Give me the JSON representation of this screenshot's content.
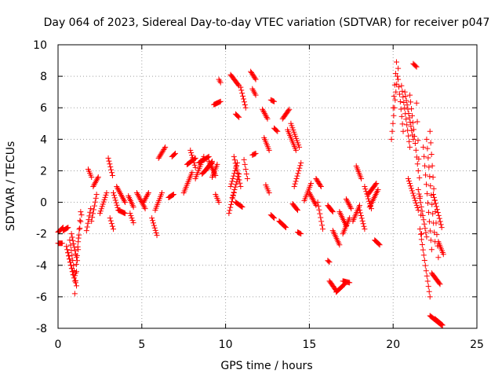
{
  "chart_data": {
    "type": "scatter",
    "title": "Day 064 of 2023, Sidereal Day-to-day VTEC variation (SDTVAR) for receiver p047",
    "xlabel": "GPS time / hours",
    "ylabel": "SDTVAR / TECUs",
    "xlim": [
      0,
      25
    ],
    "ylim": [
      -8,
      10
    ],
    "xticks": [
      "0",
      "5",
      "10",
      "15",
      "20",
      "25"
    ],
    "yticks": [
      "-8",
      "-6",
      "-4",
      "-2",
      "0",
      "2",
      "4",
      "6",
      "8",
      "10"
    ],
    "grid": true,
    "marker": "+",
    "color": "#ff0000",
    "series": [
      {
        "name": "SDTVAR",
        "segments": [
          {
            "x": [
              0.0,
              0.25
            ],
            "y": [
              -2.6,
              -2.6
            ]
          },
          {
            "x": [
              0.0,
              0.3
            ],
            "y": [
              -1.9,
              -1.6
            ]
          },
          {
            "x": [
              0.3,
              0.6
            ],
            "y": [
              -1.8,
              -1.6
            ]
          },
          {
            "x": [
              0.5,
              0.9
            ],
            "y": [
              -2.8,
              -4.6
            ]
          },
          {
            "x": [
              0.6,
              1.0
            ],
            "y": [
              -3.2,
              -5.0
            ]
          },
          {
            "x": [
              0.7,
              1.1
            ],
            "y": [
              -2.4,
              -5.3
            ]
          },
          {
            "x": [
              0.8,
              1.1
            ],
            "y": [
              -2.0,
              -3.5
            ]
          },
          {
            "x": [
              1.0,
              1.2
            ],
            "y": [
              -5.8,
              -3.0
            ]
          },
          {
            "x": [
              1.05,
              1.35
            ],
            "y": [
              -4.5,
              -0.6
            ]
          },
          {
            "x": [
              1.2,
              1.4
            ],
            "y": [
              -2.5,
              -0.8
            ]
          },
          {
            "x": [
              1.7,
              1.95
            ],
            "y": [
              -1.8,
              -0.4
            ]
          },
          {
            "x": [
              1.8,
              2.0
            ],
            "y": [
              2.1,
              1.6
            ]
          },
          {
            "x": [
              2.0,
              2.3
            ],
            "y": [
              -1.2,
              0.5
            ]
          },
          {
            "x": [
              2.1,
              2.4
            ],
            "y": [
              1.0,
              1.6
            ]
          },
          {
            "x": [
              2.5,
              2.9
            ],
            "y": [
              -0.7,
              0.6
            ]
          },
          {
            "x": [
              3.0,
              3.25
            ],
            "y": [
              2.8,
              1.7
            ]
          },
          {
            "x": [
              3.1,
              3.3
            ],
            "y": [
              -1.0,
              -1.7
            ]
          },
          {
            "x": [
              3.3,
              3.6
            ],
            "y": [
              0.6,
              -0.5
            ]
          },
          {
            "x": [
              3.5,
              4.0
            ],
            "y": [
              1.0,
              0.0
            ]
          },
          {
            "x": [
              3.6,
              4.0
            ],
            "y": [
              -0.5,
              -0.7
            ]
          },
          {
            "x": [
              4.2,
              4.5
            ],
            "y": [
              0.4,
              -0.3
            ]
          },
          {
            "x": [
              4.3,
              4.5
            ],
            "y": [
              -0.7,
              -1.3
            ]
          },
          {
            "x": [
              4.7,
              5.2
            ],
            "y": [
              0.6,
              -0.4
            ]
          },
          {
            "x": [
              5.1,
              5.4
            ],
            "y": [
              0.0,
              0.6
            ]
          },
          {
            "x": [
              5.6,
              5.9
            ],
            "y": [
              -1.0,
              -2.1
            ]
          },
          {
            "x": [
              5.8,
              6.2
            ],
            "y": [
              -0.5,
              0.6
            ]
          },
          {
            "x": [
              6.0,
              6.4
            ],
            "y": [
              2.8,
              3.5
            ]
          },
          {
            "x": [
              6.6,
              6.9
            ],
            "y": [
              0.3,
              0.5
            ]
          },
          {
            "x": [
              6.8,
              7.0
            ],
            "y": [
              2.9,
              3.1
            ]
          },
          {
            "x": [
              7.5,
              8.0
            ],
            "y": [
              0.6,
              1.9
            ]
          },
          {
            "x": [
              7.7,
              8.2
            ],
            "y": [
              2.4,
              2.8
            ]
          },
          {
            "x": [
              7.9,
              8.2
            ],
            "y": [
              3.3,
              2.2
            ]
          },
          {
            "x": [
              8.2,
              8.7
            ],
            "y": [
              1.5,
              2.9
            ]
          },
          {
            "x": [
              8.4,
              9.0
            ],
            "y": [
              2.5,
              2.9
            ]
          },
          {
            "x": [
              8.6,
              9.2
            ],
            "y": [
              1.8,
              2.5
            ]
          },
          {
            "x": [
              8.8,
              9.2
            ],
            "y": [
              2.0,
              2.6
            ]
          },
          {
            "x": [
              9.0,
              9.4
            ],
            "y": [
              2.6,
              1.7
            ]
          },
          {
            "x": [
              9.2,
              9.5
            ],
            "y": [
              1.6,
              2.4
            ]
          },
          {
            "x": [
              9.4,
              9.6
            ],
            "y": [
              0.5,
              0.0
            ]
          },
          {
            "x": [
              9.3,
              9.7
            ],
            "y": [
              6.2,
              6.4
            ]
          },
          {
            "x": [
              9.6,
              9.7
            ],
            "y": [
              7.8,
              7.6
            ]
          },
          {
            "x": [
              10.2,
              10.5
            ],
            "y": [
              -0.7,
              0.6
            ]
          },
          {
            "x": [
              10.3,
              10.7
            ],
            "y": [
              1.0,
              2.5
            ]
          },
          {
            "x": [
              10.4,
              10.8
            ],
            "y": [
              0.3,
              1.8
            ]
          },
          {
            "x": [
              10.5,
              10.9
            ],
            "y": [
              2.9,
              1.0
            ]
          },
          {
            "x": [
              10.6,
              11.0
            ],
            "y": [
              0.0,
              -0.3
            ]
          },
          {
            "x": [
              10.3,
              10.8
            ],
            "y": [
              8.1,
              7.4
            ]
          },
          {
            "x": [
              10.6,
              10.8
            ],
            "y": [
              5.6,
              5.4
            ]
          },
          {
            "x": [
              10.9,
              11.2
            ],
            "y": [
              7.3,
              6.0
            ]
          },
          {
            "x": [
              11.1,
              11.3
            ],
            "y": [
              2.7,
              1.5
            ]
          },
          {
            "x": [
              11.5,
              11.8
            ],
            "y": [
              8.3,
              7.8
            ]
          },
          {
            "x": [
              11.6,
              11.8
            ],
            "y": [
              7.2,
              6.8
            ]
          },
          {
            "x": [
              11.6,
              11.8
            ],
            "y": [
              3.0,
              3.1
            ]
          },
          {
            "x": [
              12.2,
              12.5
            ],
            "y": [
              5.9,
              5.3
            ]
          },
          {
            "x": [
              12.3,
              12.6
            ],
            "y": [
              4.1,
              3.3
            ]
          },
          {
            "x": [
              12.4,
              12.6
            ],
            "y": [
              1.1,
              0.6
            ]
          },
          {
            "x": [
              12.7,
              12.9
            ],
            "y": [
              6.5,
              6.4
            ]
          },
          {
            "x": [
              12.7,
              12.9
            ],
            "y": [
              -0.8,
              -1.0
            ]
          },
          {
            "x": [
              12.9,
              13.1
            ],
            "y": [
              4.7,
              4.5
            ]
          },
          {
            "x": [
              13.2,
              13.6
            ],
            "y": [
              -1.2,
              -1.6
            ]
          },
          {
            "x": [
              13.4,
              13.8
            ],
            "y": [
              5.3,
              5.9
            ]
          },
          {
            "x": [
              13.7,
              14.2
            ],
            "y": [
              4.6,
              3.3
            ]
          },
          {
            "x": [
              13.9,
              14.4
            ],
            "y": [
              5.0,
              3.5
            ]
          },
          {
            "x": [
              14.0,
              14.3
            ],
            "y": [
              -0.1,
              -0.5
            ]
          },
          {
            "x": [
              14.1,
              14.5
            ],
            "y": [
              1.0,
              2.5
            ]
          },
          {
            "x": [
              14.3,
              14.5
            ],
            "y": [
              -1.9,
              -2.0
            ]
          },
          {
            "x": [
              14.7,
              15.1
            ],
            "y": [
              0.1,
              1.2
            ]
          },
          {
            "x": [
              15.0,
              15.4
            ],
            "y": [
              0.6,
              -0.2
            ]
          },
          {
            "x": [
              15.4,
              15.7
            ],
            "y": [
              1.5,
              1.0
            ]
          },
          {
            "x": [
              15.5,
              15.8
            ],
            "y": [
              0.0,
              -1.7
            ]
          },
          {
            "x": [
              16.1,
              16.2
            ],
            "y": [
              -3.7,
              -3.8
            ]
          },
          {
            "x": [
              16.1,
              16.4
            ],
            "y": [
              -0.2,
              -0.6
            ]
          },
          {
            "x": [
              16.2,
              16.6
            ],
            "y": [
              -5.0,
              -5.6
            ]
          },
          {
            "x": [
              16.4,
              16.8
            ],
            "y": [
              -1.8,
              -2.7
            ]
          },
          {
            "x": [
              16.6,
              17.1
            ],
            "y": [
              -5.7,
              -5.2
            ]
          },
          {
            "x": [
              16.8,
              17.2
            ],
            "y": [
              -0.6,
              -1.5
            ]
          },
          {
            "x": [
              17.0,
              17.4
            ],
            "y": [
              -5.0,
              -5.1
            ]
          },
          {
            "x": [
              17.0,
              17.4
            ],
            "y": [
              -2.0,
              -1.0
            ]
          },
          {
            "x": [
              17.2,
              17.5
            ],
            "y": [
              0.2,
              -0.4
            ]
          },
          {
            "x": [
              17.6,
              18.0
            ],
            "y": [
              -1.2,
              -0.2
            ]
          },
          {
            "x": [
              17.8,
              18.1
            ],
            "y": [
              2.3,
              1.5
            ]
          },
          {
            "x": [
              18.0,
              18.3
            ],
            "y": [
              -0.5,
              -1.7
            ]
          },
          {
            "x": [
              18.3,
              18.7
            ],
            "y": [
              1.0,
              -0.4
            ]
          },
          {
            "x": [
              18.5,
              19.0
            ],
            "y": [
              0.5,
              1.2
            ]
          },
          {
            "x": [
              18.6,
              19.1
            ],
            "y": [
              -0.3,
              0.8
            ]
          },
          {
            "x": [
              18.9,
              19.2
            ],
            "y": [
              -2.4,
              -2.7
            ]
          },
          {
            "x": [
              19.9,
              20.3
            ],
            "y": [
              4.0,
              8.5
            ]
          },
          {
            "x": [
              20.0,
              20.2
            ],
            "y": [
              6.0,
              8.9
            ]
          },
          {
            "x": [
              20.3,
              20.6
            ],
            "y": [
              7.8,
              4.5
            ]
          },
          {
            "x": [
              20.5,
              21.0
            ],
            "y": [
              7.4,
              3.5
            ]
          },
          {
            "x": [
              20.7,
              21.2
            ],
            "y": [
              7.0,
              4.0
            ]
          },
          {
            "x": [
              20.9,
              21.5
            ],
            "y": [
              1.5,
              -0.5
            ]
          },
          {
            "x": [
              21.0,
              21.5
            ],
            "y": [
              6.8,
              2.0
            ]
          },
          {
            "x": [
              21.2,
              21.4
            ],
            "y": [
              8.8,
              8.6
            ]
          },
          {
            "x": [
              21.4,
              21.7
            ],
            "y": [
              6.3,
              -2.0
            ]
          },
          {
            "x": [
              21.5,
              22.0
            ],
            "y": [
              0.8,
              -2.2
            ]
          },
          {
            "x": [
              21.6,
              22.2
            ],
            "y": [
              -1.7,
              -6.0
            ]
          },
          {
            "x": [
              21.8,
              22.3
            ],
            "y": [
              3.5,
              -3.0
            ]
          },
          {
            "x": [
              22.0,
              22.5
            ],
            "y": [
              4.0,
              -2.5
            ]
          },
          {
            "x": [
              22.2,
              22.7
            ],
            "y": [
              4.5,
              -3.5
            ]
          },
          {
            "x": [
              22.3,
              22.8
            ],
            "y": [
              -4.5,
              -5.2
            ]
          },
          {
            "x": [
              22.4,
              22.9
            ],
            "y": [
              0.5,
              -1.6
            ]
          },
          {
            "x": [
              22.7,
              23.0
            ],
            "y": [
              -2.5,
              -3.3
            ]
          },
          {
            "x": [
              22.2,
              22.9
            ],
            "y": [
              -7.2,
              -7.8
            ]
          },
          {
            "x": [
              22.5,
              22.95
            ],
            "y": [
              -7.4,
              -7.8
            ]
          }
        ]
      }
    ]
  }
}
